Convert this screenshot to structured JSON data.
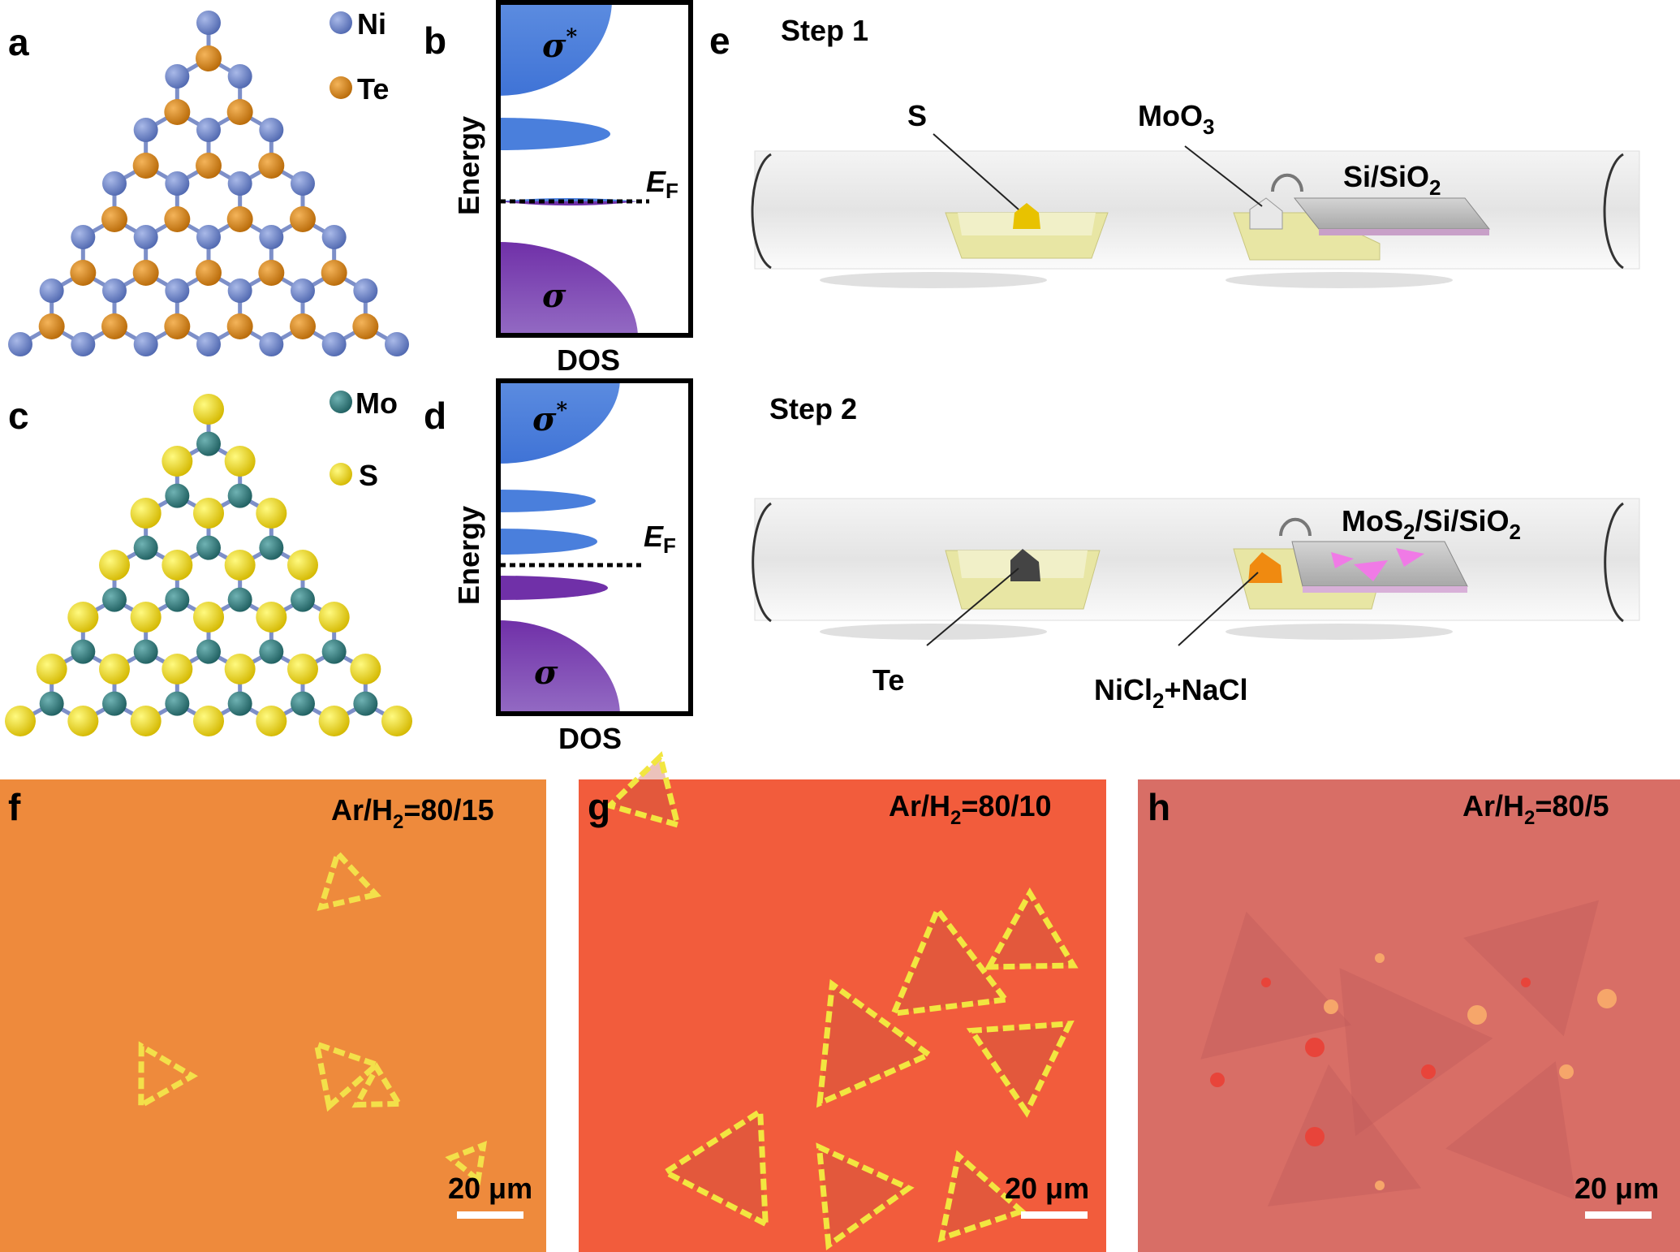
{
  "panels": {
    "a": {
      "label": "a",
      "legend": [
        {
          "symbol": "Ni",
          "color": "#6f86c8"
        },
        {
          "symbol": "Te",
          "color": "#d98a1c"
        }
      ]
    },
    "b": {
      "label": "b",
      "y_axis": "Energy",
      "x_axis": "DOS",
      "sigma_star": "σ",
      "star": "*",
      "sigma": "σ",
      "ef_main": "E",
      "ef_sub": "F"
    },
    "c": {
      "label": "c",
      "legend": [
        {
          "symbol": "Mo",
          "color": "#2f7f80"
        },
        {
          "symbol": "S",
          "color": "#f2dc0c"
        }
      ]
    },
    "d": {
      "label": "d",
      "y_axis": "Energy",
      "x_axis": "DOS",
      "sigma_star": "σ",
      "star": "*",
      "sigma": "σ",
      "ef_main": "E",
      "ef_sub": "F"
    },
    "e": {
      "label": "e",
      "step1": {
        "title": "Step 1",
        "source": "S",
        "precursor_main": "MoO",
        "precursor_sub": "3",
        "substrate": [
          "Si/SiO",
          "2"
        ]
      },
      "step2": {
        "title": "Step 2",
        "source": "Te",
        "precursor": [
          "NiCl",
          "2",
          "+NaCl"
        ],
        "substrate": [
          "MoS",
          "2",
          "/Si/SiO",
          "2"
        ]
      }
    },
    "f": {
      "label": "f",
      "condition": [
        "Ar/H",
        "2",
        "=80/15"
      ],
      "scale_bar": "20 μm",
      "bg": "#ef8a3a"
    },
    "g": {
      "label": "g",
      "condition": [
        "Ar/H",
        "2",
        "=80/10"
      ],
      "scale_bar": "20 μm",
      "bg": "#f25a3a"
    },
    "h": {
      "label": "h",
      "condition": [
        "Ar/H",
        "2",
        "=80/5"
      ],
      "scale_bar": "20 μm",
      "bg": "#db7068"
    }
  },
  "colors": {
    "sigma_star_band": "#4a7fdc",
    "sigma_band": "#7a3cb0"
  }
}
